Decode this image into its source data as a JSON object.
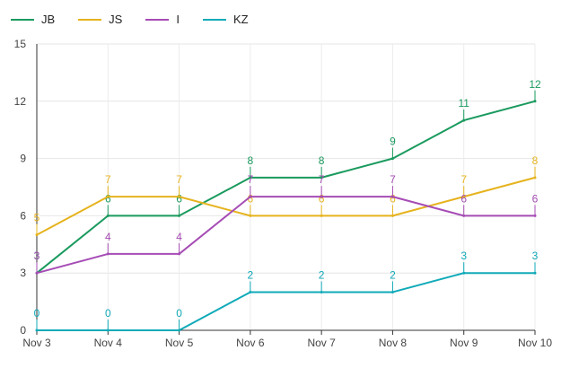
{
  "chart_data": {
    "type": "line",
    "categories": [
      "Nov 3",
      "Nov 4",
      "Nov 5",
      "Nov 6",
      "Nov 7",
      "Nov 8",
      "Nov 9",
      "Nov 10"
    ],
    "ylim": [
      0,
      15
    ],
    "yticks": [
      0,
      3,
      6,
      9,
      12,
      15
    ],
    "grid": true,
    "legend_position": "top-left",
    "series": [
      {
        "name": "JB",
        "color": "#1a9a5e",
        "values": [
          3,
          6,
          6,
          8,
          8,
          9,
          11,
          12
        ]
      },
      {
        "name": "JS",
        "color": "#e6b31e",
        "values": [
          5,
          7,
          7,
          6,
          6,
          6,
          7,
          8
        ]
      },
      {
        "name": "I",
        "color": "#a64cb5",
        "values": [
          3,
          4,
          4,
          7,
          7,
          7,
          6,
          6
        ]
      },
      {
        "name": "KZ",
        "color": "#10aab8",
        "values": [
          0,
          0,
          0,
          2,
          2,
          2,
          3,
          3
        ]
      }
    ]
  }
}
